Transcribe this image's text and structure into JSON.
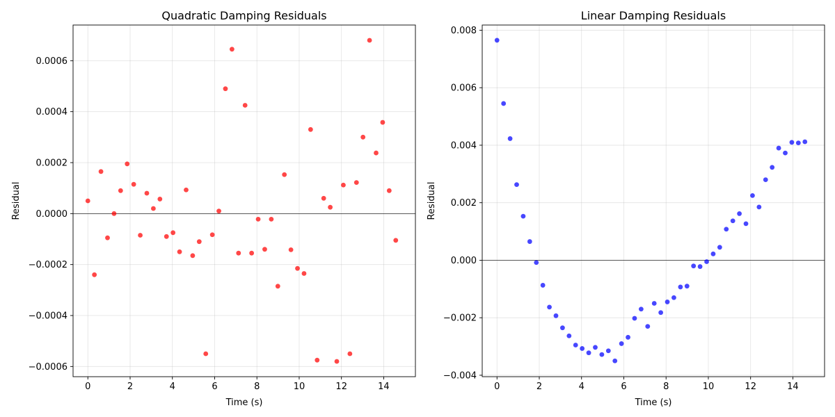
{
  "chart_data": [
    {
      "type": "scatter",
      "title": "Quadratic Damping Residuals",
      "xlabel": "Time (s)",
      "ylabel": "Residual",
      "xlim": [
        -0.7,
        15.5
      ],
      "ylim": [
        -0.00064,
        0.00074
      ],
      "xticks": [
        0,
        2,
        4,
        6,
        8,
        10,
        12,
        14
      ],
      "xtick_labels": [
        "0",
        "2",
        "4",
        "6",
        "8",
        "10",
        "12",
        "14"
      ],
      "yticks": [
        -0.0006,
        -0.0004,
        -0.0002,
        0.0,
        0.0002,
        0.0004,
        0.0006
      ],
      "ytick_labels": [
        "−0.0006",
        "−0.0004",
        "−0.0002",
        "0.0000",
        "0.0002",
        "0.0004",
        "0.0006"
      ],
      "grid": true,
      "zero_line": true,
      "color": "#ff0000",
      "x": [
        0.0,
        0.31,
        0.62,
        0.93,
        1.24,
        1.55,
        1.86,
        2.17,
        2.48,
        2.79,
        3.1,
        3.41,
        3.72,
        4.03,
        4.34,
        4.65,
        4.96,
        5.27,
        5.58,
        5.89,
        6.2,
        6.51,
        6.82,
        7.13,
        7.44,
        7.75,
        8.06,
        8.37,
        8.68,
        8.99,
        9.3,
        9.61,
        9.92,
        10.23,
        10.54,
        10.85,
        11.16,
        11.47,
        11.78,
        12.09,
        12.4,
        12.71,
        13.02,
        13.33,
        13.64,
        13.95,
        14.26,
        14.57
      ],
      "y": [
        5e-05,
        -0.00024,
        0.000165,
        -9.5e-05,
        0.0,
        9e-05,
        0.000195,
        0.000115,
        -8.5e-05,
        8e-05,
        2e-05,
        5.7e-05,
        -9e-05,
        -7.5e-05,
        -0.00015,
        9.3e-05,
        -0.000165,
        -0.00011,
        -0.00055,
        -8.3e-05,
        1e-05,
        0.00049,
        0.000645,
        -0.000155,
        0.000425,
        -0.000155,
        -2.2e-05,
        -0.00014,
        -2.2e-05,
        -0.000285,
        0.000153,
        -0.000142,
        -0.000215,
        -0.000235,
        0.00033,
        -0.000575,
        6e-05,
        2.5e-05,
        -0.00058,
        0.000112,
        -0.00055,
        0.000122,
        0.0003,
        0.00068,
        0.000238,
        0.000358,
        9e-05,
        -0.000105
      ]
    },
    {
      "type": "scatter",
      "title": "Linear Damping Residuals",
      "xlabel": "Time (s)",
      "ylabel": "Residual",
      "xlim": [
        -0.7,
        15.5
      ],
      "ylim": [
        -0.00405,
        0.00818
      ],
      "xticks": [
        0,
        2,
        4,
        6,
        8,
        10,
        12,
        14
      ],
      "xtick_labels": [
        "0",
        "2",
        "4",
        "6",
        "8",
        "10",
        "12",
        "14"
      ],
      "yticks": [
        -0.004,
        -0.002,
        0.0,
        0.002,
        0.004,
        0.006,
        0.008
      ],
      "ytick_labels": [
        "−0.004",
        "−0.002",
        "0.000",
        "0.002",
        "0.004",
        "0.006",
        "0.008"
      ],
      "grid": true,
      "zero_line": true,
      "color": "#0000ff",
      "x": [
        0.0,
        0.31,
        0.62,
        0.93,
        1.24,
        1.55,
        1.86,
        2.17,
        2.48,
        2.79,
        3.1,
        3.41,
        3.72,
        4.03,
        4.34,
        4.65,
        4.96,
        5.27,
        5.58,
        5.89,
        6.2,
        6.51,
        6.82,
        7.13,
        7.44,
        7.75,
        8.06,
        8.37,
        8.68,
        8.99,
        9.3,
        9.61,
        9.92,
        10.23,
        10.54,
        10.85,
        11.16,
        11.47,
        11.78,
        12.09,
        12.4,
        12.71,
        13.02,
        13.33,
        13.64,
        13.95,
        14.26,
        14.57
      ],
      "y": [
        0.00765,
        0.00545,
        0.00423,
        0.00263,
        0.00153,
        0.00065,
        -8e-05,
        -0.00087,
        -0.00163,
        -0.00193,
        -0.00235,
        -0.00263,
        -0.00295,
        -0.00307,
        -0.00322,
        -0.00303,
        -0.00328,
        -0.00315,
        -0.0035,
        -0.0029,
        -0.00268,
        -0.00202,
        -0.0017,
        -0.0023,
        -0.0015,
        -0.00182,
        -0.00145,
        -0.0013,
        -0.00093,
        -0.0009,
        -0.0002,
        -0.00022,
        -5e-05,
        0.00022,
        0.00045,
        0.00108,
        0.00137,
        0.00162,
        0.00127,
        0.00225,
        0.00185,
        0.0028,
        0.00323,
        0.0039,
        0.00373,
        0.0041,
        0.00408,
        0.00412
      ]
    }
  ]
}
